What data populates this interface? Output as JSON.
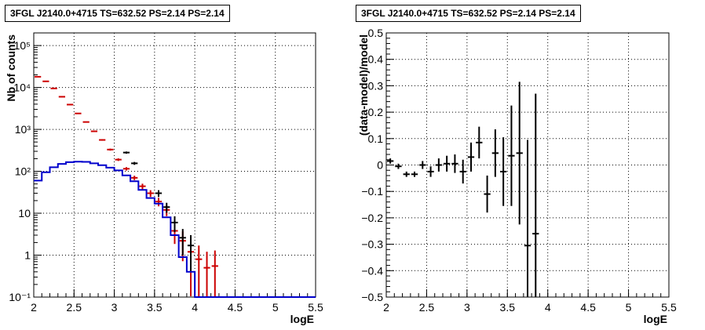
{
  "chart_data": [
    {
      "type": "histogram",
      "title": "3FGL J2140.0+4715 TS=632.52 PS=2.14 PS=2.14",
      "xlabel": "logE",
      "ylabel": "Nb of counts",
      "xlim": [
        2,
        5.5
      ],
      "ylim": [
        0.1,
        200000
      ],
      "yscale": "log",
      "grid": true,
      "x_ticks": [
        "2",
        "2.5",
        "3",
        "3.5",
        "4",
        "4.5",
        "5",
        "5.5"
      ],
      "y_ticks": [
        "10⁻¹",
        "1",
        "10",
        "10²",
        "10³",
        "10⁴",
        "10⁵"
      ],
      "bin_width": 0.1,
      "series": [
        {
          "color": "#cc0000",
          "style": "points-with-errors",
          "x": [
            2.05,
            2.15,
            2.25,
            2.35,
            2.45,
            2.55,
            2.65,
            2.75,
            2.85,
            2.95,
            3.05,
            3.15,
            3.25,
            3.35,
            3.45,
            3.55,
            3.65,
            3.75,
            3.85,
            3.95,
            4.05,
            4.15,
            4.25
          ],
          "y": [
            18000,
            14000,
            9500,
            6000,
            3900,
            2400,
            1500,
            900,
            560,
            330,
            190,
            115,
            70,
            44,
            30,
            19,
            12,
            3.8,
            2.2,
            1.2,
            0.8,
            0.5,
            0.55
          ]
        },
        {
          "color": "#000000",
          "style": "points-with-errors",
          "x": [
            3.15,
            3.25,
            3.55,
            3.65,
            3.75,
            3.85,
            3.95
          ],
          "y": [
            280,
            155,
            30,
            14,
            6,
            2.6,
            1.7
          ]
        },
        {
          "color": "#0000cc",
          "style": "step",
          "x": [
            2.05,
            2.15,
            2.25,
            2.35,
            2.45,
            2.55,
            2.65,
            2.75,
            2.85,
            2.95,
            3.05,
            3.15,
            3.25,
            3.35,
            3.45,
            3.55,
            3.65,
            3.75,
            3.85,
            3.95,
            4.05,
            4.15,
            4.25,
            4.35,
            4.45,
            4.55,
            4.65,
            4.75,
            4.85,
            4.95,
            5.05,
            5.15,
            5.25,
            5.35,
            5.45
          ],
          "y": [
            60,
            95,
            125,
            150,
            165,
            170,
            168,
            155,
            140,
            122,
            105,
            80,
            58,
            36,
            23,
            17,
            8,
            3,
            0.9,
            0.4,
            0.1,
            0.1,
            0.1,
            0.1,
            0.1,
            0.1,
            0.1,
            0.1,
            0.1,
            0.1,
            0.1,
            0.1,
            0.1,
            0.1,
            0.1
          ]
        }
      ]
    },
    {
      "type": "scatter",
      "title": "3FGL J2140.0+4715 TS=632.52 PS=2.14 PS=2.14",
      "xlabel": "logE",
      "ylabel": "(data-model)/model",
      "xlim": [
        2,
        5.5
      ],
      "ylim": [
        -0.5,
        0.5
      ],
      "grid": true,
      "x_ticks": [
        "2",
        "2.5",
        "3",
        "3.5",
        "4",
        "4.5",
        "5",
        "5.5"
      ],
      "y_ticks": [
        "−0.5",
        "−0.4",
        "−0.3",
        "−0.2",
        "−0.1",
        "0",
        "0.1",
        "0.2",
        "0.3",
        "0.4",
        "0.5"
      ],
      "series": [
        {
          "color": "#000000",
          "style": "points-with-errors",
          "x": [
            2.05,
            2.15,
            2.25,
            2.35,
            2.45,
            2.55,
            2.65,
            2.75,
            2.85,
            2.95,
            3.05,
            3.15,
            3.25,
            3.35,
            3.45,
            3.55,
            3.65,
            3.75,
            3.85
          ],
          "y": [
            0.015,
            -0.005,
            -0.035,
            -0.035,
            0.0,
            -0.025,
            0.0,
            0.005,
            0.005,
            -0.025,
            0.03,
            0.085,
            -0.11,
            0.045,
            -0.025,
            0.035,
            0.045,
            -0.305,
            -0.26
          ],
          "err": [
            0.01,
            0.01,
            0.01,
            0.01,
            0.015,
            0.02,
            0.025,
            0.03,
            0.035,
            0.045,
            0.055,
            0.06,
            0.07,
            0.09,
            0.13,
            0.19,
            0.27,
            0.4,
            0.53
          ]
        }
      ]
    }
  ]
}
